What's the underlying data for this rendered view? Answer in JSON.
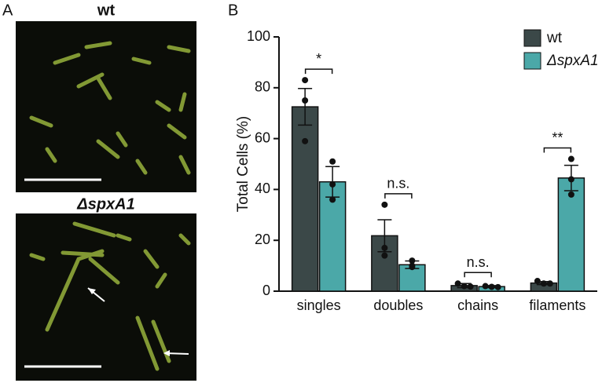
{
  "figure": {
    "panel_a_label": "A",
    "panel_b_label": "B",
    "image_titles": [
      "wt",
      "ΔspxA1"
    ]
  },
  "chart_data": {
    "type": "bar",
    "y_label": "Total Cells (%)",
    "categories": [
      "singles",
      "doubles",
      "chains",
      "filaments"
    ],
    "series": [
      {
        "name": "wt",
        "color": "#3b4848",
        "values": [
          72.5,
          21.8,
          2.2,
          3.2
        ],
        "errors": [
          7.2,
          6.3,
          0.8,
          0.6
        ],
        "points": [
          [
            83,
            75,
            59
          ],
          [
            34,
            17,
            14
          ],
          [
            3,
            2,
            1.8
          ],
          [
            4,
            3,
            3
          ]
        ]
      },
      {
        "name": "ΔspxA1",
        "color": "#4ba8a8",
        "values": [
          43,
          10.4,
          1.8,
          44.5
        ],
        "errors": [
          6,
          1.5,
          0.4,
          5
        ],
        "points": [
          [
            51,
            42,
            36
          ],
          [
            12,
            10,
            9.5
          ],
          [
            2,
            1.7,
            1.6
          ],
          [
            52,
            44,
            38
          ]
        ]
      }
    ],
    "annotations": [
      "*",
      "n.s.",
      "n.s.",
      "**"
    ],
    "ylim": [
      0,
      100
    ],
    "yticks": [
      0,
      20,
      40,
      60,
      80,
      100
    ],
    "grid": false,
    "legend": "upper right"
  }
}
